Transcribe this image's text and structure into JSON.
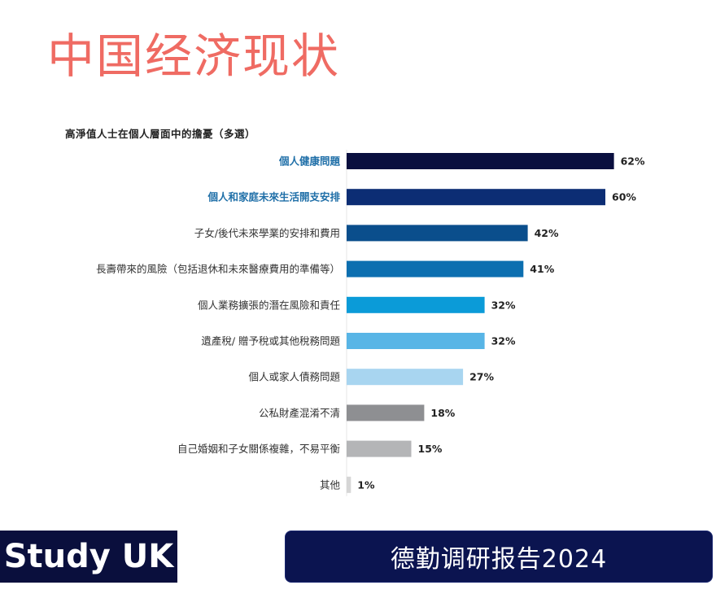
{
  "page": {
    "title": "中国经济现状",
    "brand": "Study UK",
    "source": "德勤调研报告2024"
  },
  "chart_data": {
    "type": "bar",
    "orientation": "horizontal",
    "title": "高淨值人士在個人層面中的擔憂（多選）",
    "categories": [
      "個人健康問題",
      "個人和家庭未來生活開支安排",
      "子女/後代未來學業的安排和費用",
      "長壽帶來的風險（包括退休和未來醫療費用的準備等）",
      "個人業務擴張的潛在風險和責任",
      "遺產稅/ 贈予稅或其他稅務問題",
      "個人或家人債務問題",
      "公私財產混淆不清",
      "自己婚姻和子女關係複雜，不易平衡",
      "其他"
    ],
    "values": [
      62,
      60,
      42,
      41,
      32,
      32,
      27,
      18,
      15,
      1
    ],
    "value_labels": [
      "62%",
      "60%",
      "42%",
      "41%",
      "32%",
      "32%",
      "27%",
      "18%",
      "15%",
      "1%"
    ],
    "bar_colors": [
      "#0a0f3f",
      "#0c2d74",
      "#0a4e8c",
      "#0c6fb0",
      "#0b9bd8",
      "#58b5e6",
      "#a8d5f0",
      "#8e8f92",
      "#b4b5b7",
      "#d6d6d6"
    ],
    "label_colors": [
      "#1f6fa8",
      "#1f6fa8",
      "#333333",
      "#333333",
      "#333333",
      "#333333",
      "#333333",
      "#333333",
      "#333333",
      "#333333"
    ],
    "label_bold": [
      true,
      true,
      false,
      false,
      false,
      false,
      false,
      false,
      false,
      false
    ],
    "xlim": [
      0,
      100
    ],
    "grid": false,
    "legend": "none"
  }
}
